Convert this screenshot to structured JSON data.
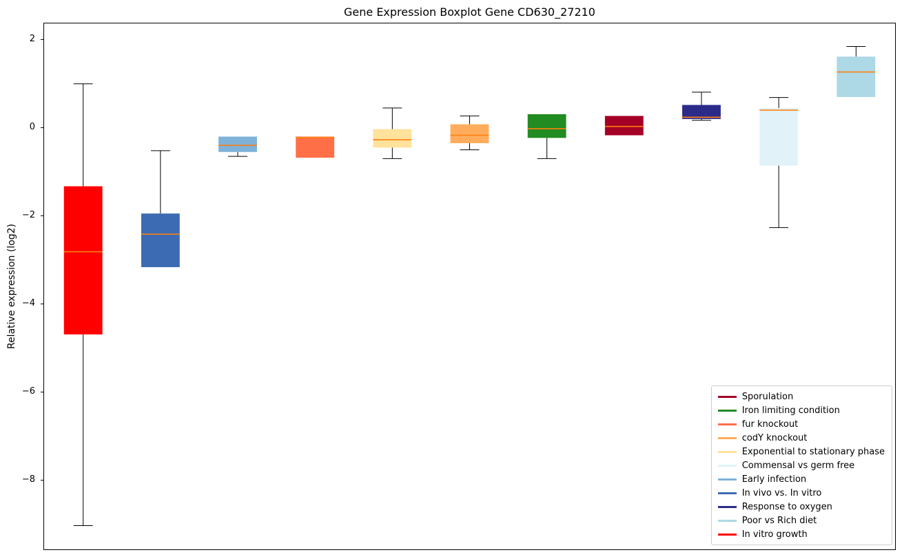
{
  "chart_data": {
    "type": "boxplot",
    "title": "Gene Expression Boxplot Gene CD630_27210",
    "ylabel": "Relative expression (log2)",
    "ylim": [
      -9.59,
      2.375
    ],
    "yticks": [
      2,
      0,
      -2,
      -4,
      -6,
      -8
    ],
    "grid": false,
    "median_color": "#ff7f0e",
    "whisker_color": "#000000",
    "legend_position": "lower right",
    "boxes": [
      {
        "condition": "In vitro growth",
        "color": "#ff0000",
        "whisker_low": -9.05,
        "q1": -4.7,
        "median": -2.82,
        "q3": -1.33,
        "whisker_high": 1.0
      },
      {
        "condition": "In vivo vs. In vitro",
        "color": "#3d6bb3",
        "whisker_low": -3.17,
        "q1": -3.17,
        "median": -2.42,
        "q3": -1.95,
        "whisker_high": -0.52
      },
      {
        "condition": "Early infection",
        "color": "#7fb2d9",
        "whisker_low": -0.65,
        "q1": -0.55,
        "median": -0.4,
        "q3": -0.2,
        "whisker_high": -0.2
      },
      {
        "condition": "fur knockout",
        "color": "#ff6f47",
        "whisker_low": -0.68,
        "q1": -0.68,
        "median": -0.22,
        "q3": -0.2,
        "whisker_high": -0.2
      },
      {
        "condition": "Exponential to stationary phase",
        "color": "#ffe29b",
        "whisker_low": -0.7,
        "q1": -0.45,
        "median": -0.27,
        "q3": -0.03,
        "whisker_high": 0.45
      },
      {
        "condition": "codY knockout",
        "color": "#ffad5c",
        "whisker_low": -0.5,
        "q1": -0.35,
        "median": -0.17,
        "q3": 0.08,
        "whisker_high": 0.27
      },
      {
        "condition": "Iron limiting condition",
        "color": "#228b22",
        "whisker_low": -0.7,
        "q1": -0.23,
        "median": -0.02,
        "q3": 0.31,
        "whisker_high": 0.31
      },
      {
        "condition": "Sporulation",
        "color": "#a50026",
        "whisker_low": -0.17,
        "q1": -0.17,
        "median": 0.03,
        "q3": 0.27,
        "whisker_high": 0.27
      },
      {
        "condition": "Response to oxygen",
        "color": "#2b2b8a",
        "whisker_low": 0.17,
        "q1": 0.2,
        "median": 0.24,
        "q3": 0.52,
        "whisker_high": 0.81
      },
      {
        "condition": "Commensal vs germ free",
        "color": "#e1f2f9",
        "whisker_low": -2.27,
        "q1": -0.86,
        "median": 0.4,
        "q3": 0.45,
        "whisker_high": 0.69
      },
      {
        "condition": "Poor vs Rich diet",
        "color": "#add8e6",
        "whisker_low": 0.7,
        "q1": 0.7,
        "median": 1.27,
        "q3": 1.62,
        "whisker_high": 1.85
      }
    ],
    "legend": [
      {
        "label": "Sporulation",
        "color": "#a50026"
      },
      {
        "label": "Iron limiting condition",
        "color": "#228b22"
      },
      {
        "label": "fur knockout",
        "color": "#ff6f47"
      },
      {
        "label": "codY knockout",
        "color": "#ffad5c"
      },
      {
        "label": "Exponential to stationary phase",
        "color": "#ffe29b"
      },
      {
        "label": "Commensal vs germ free",
        "color": "#e1f2f9"
      },
      {
        "label": "Early infection",
        "color": "#7fb2d9"
      },
      {
        "label": "In vivo vs. In vitro",
        "color": "#3d6bb3"
      },
      {
        "label": "Response to oxygen",
        "color": "#2b2b8a"
      },
      {
        "label": "Poor vs Rich diet",
        "color": "#add8e6"
      },
      {
        "label": "In vitro growth",
        "color": "#ff0000"
      }
    ]
  }
}
